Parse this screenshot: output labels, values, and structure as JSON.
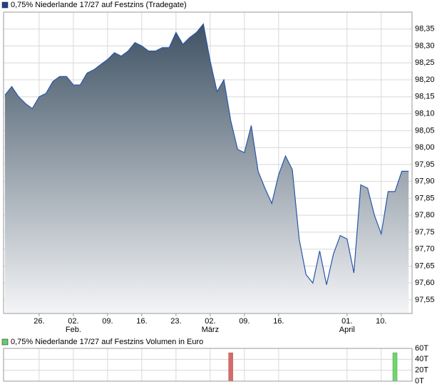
{
  "chart_data": [
    {
      "type": "area",
      "title": "0,75% Niederlande 17/27 auf Festzins (Tradegate)",
      "legend_color": "#1f3f8f",
      "line_color": "#2a55a8",
      "x": [
        0,
        1,
        2,
        3,
        4,
        5,
        6,
        7,
        8,
        9,
        10,
        11,
        12,
        13,
        14,
        15,
        16,
        17,
        18,
        19,
        20,
        21,
        22,
        23,
        24,
        25,
        26,
        27,
        28,
        29,
        30,
        31,
        32,
        33,
        34,
        35,
        36,
        37,
        38,
        39,
        40,
        41,
        42,
        43,
        44,
        45,
        46,
        47,
        48,
        49,
        50,
        51,
        52,
        53,
        54,
        55,
        56,
        57,
        58,
        59
      ],
      "values": [
        98.155,
        98.18,
        98.15,
        98.13,
        98.115,
        98.15,
        98.16,
        98.195,
        98.21,
        98.21,
        98.185,
        98.185,
        98.22,
        98.23,
        98.245,
        98.26,
        98.28,
        98.27,
        98.285,
        98.31,
        98.3,
        98.285,
        98.285,
        98.295,
        98.295,
        98.34,
        98.305,
        98.325,
        98.34,
        98.365,
        98.255,
        98.165,
        98.2,
        98.08,
        97.995,
        97.985,
        98.065,
        97.93,
        97.88,
        97.835,
        97.92,
        97.975,
        97.935,
        97.73,
        97.625,
        97.6,
        97.695,
        97.595,
        97.685,
        97.74,
        97.73,
        97.63,
        97.89,
        97.88,
        97.8,
        97.745,
        97.87,
        97.87,
        97.93,
        97.93
      ],
      "xlim": [
        -0.2,
        59.5
      ],
      "xticks": [
        {
          "value": 5,
          "label": "26."
        },
        {
          "value": 10,
          "label": "02.",
          "sublabel": "Feb."
        },
        {
          "value": 15,
          "label": "09."
        },
        {
          "value": 20,
          "label": "16."
        },
        {
          "value": 25,
          "label": "23."
        },
        {
          "value": 30,
          "label": "02.",
          "sublabel": "März"
        },
        {
          "value": 35,
          "label": "09."
        },
        {
          "value": 40,
          "label": "16."
        },
        {
          "value": 50,
          "label": "01.",
          "sublabel": "April"
        },
        {
          "value": 55,
          "label": "10."
        }
      ],
      "ylim": [
        97.51,
        98.4
      ],
      "yticks": [
        {
          "value": 97.55,
          "label": "97,55"
        },
        {
          "value": 97.6,
          "label": "97,60"
        },
        {
          "value": 97.65,
          "label": "97,65"
        },
        {
          "value": 97.7,
          "label": "97,70"
        },
        {
          "value": 97.75,
          "label": "97,75"
        },
        {
          "value": 97.8,
          "label": "97,80"
        },
        {
          "value": 97.85,
          "label": "97,85"
        },
        {
          "value": 97.9,
          "label": "97,90"
        },
        {
          "value": 97.95,
          "label": "97,95"
        },
        {
          "value": 98.0,
          "label": "98,00"
        },
        {
          "value": 98.05,
          "label": "98,05"
        },
        {
          "value": 98.1,
          "label": "98,10"
        },
        {
          "value": 98.15,
          "label": "98,15"
        },
        {
          "value": 98.2,
          "label": "98,20"
        },
        {
          "value": 98.25,
          "label": "98,25"
        },
        {
          "value": 98.3,
          "label": "98,30"
        },
        {
          "value": 98.35,
          "label": "98,35"
        }
      ],
      "grid": true
    },
    {
      "type": "bar",
      "title": "0,75% Niederlande 17/27 auf Festzins Volumen in Euro",
      "legend_color": "#66cc66",
      "x": [
        33,
        57
      ],
      "values": [
        52,
        52
      ],
      "colors": [
        "#e06666",
        "#66dd66"
      ],
      "xlim": [
        -0.2,
        59.5
      ],
      "xticks": [
        5,
        10,
        15,
        20,
        25,
        30,
        35,
        40,
        50,
        55
      ],
      "ylim": [
        0,
        60
      ],
      "yticks": [
        {
          "value": 0,
          "label": "0T"
        },
        {
          "value": 20,
          "label": "20T"
        },
        {
          "value": 40,
          "label": "40T"
        },
        {
          "value": 60,
          "label": "60T"
        }
      ],
      "grid": true
    }
  ]
}
